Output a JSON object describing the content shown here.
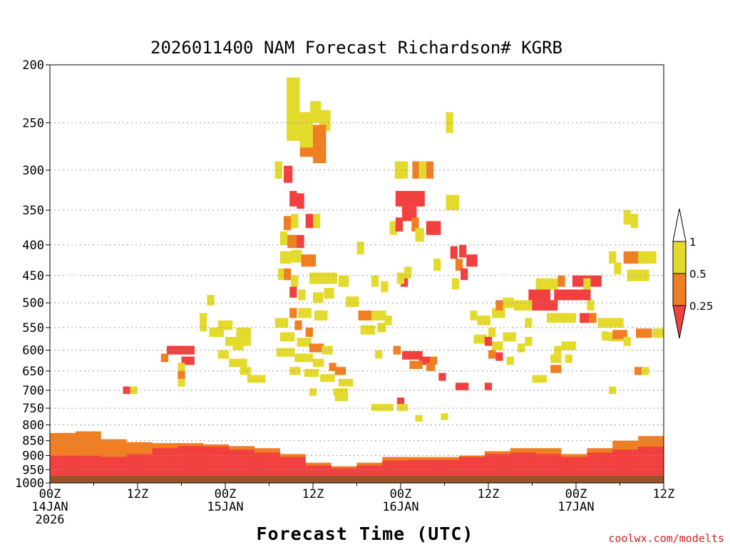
{
  "chart_data": {
    "type": "heatmap",
    "title": "2026011400 NAM Forecast Richardson# KGRB",
    "xlabel": "Forecast Time (UTC)",
    "ylabel": "",
    "source": "coolwx.com/modelts",
    "y_scale": "log-pressure (inverted)",
    "ylim": [
      1000,
      200
    ],
    "xlim_hours": [
      0,
      84
    ],
    "yticks": [
      200,
      250,
      300,
      350,
      400,
      450,
      500,
      550,
      600,
      650,
      700,
      750,
      800,
      850,
      900,
      950,
      1000
    ],
    "xticks": [
      {
        "hour": 0,
        "lines": [
          "00Z",
          "14JAN",
          "2026"
        ]
      },
      {
        "hour": 12,
        "lines": [
          "12Z"
        ]
      },
      {
        "hour": 24,
        "lines": [
          "00Z",
          "15JAN"
        ]
      },
      {
        "hour": 36,
        "lines": [
          "12Z"
        ]
      },
      {
        "hour": 48,
        "lines": [
          "00Z",
          "16JAN"
        ]
      },
      {
        "hour": 60,
        "lines": [
          "12Z"
        ]
      },
      {
        "hour": 72,
        "lines": [
          "00Z",
          "17JAN"
        ]
      },
      {
        "hour": 84,
        "lines": [
          "12Z"
        ]
      }
    ],
    "legend": [
      {
        "label": "1",
        "range": [
          0.5,
          1
        ],
        "color": "#e3da2c"
      },
      {
        "label": "0.5",
        "range": [
          0.25,
          0.5
        ],
        "color": "#ef7f22"
      },
      {
        "label": "0.25",
        "range": [
          0,
          0.25
        ],
        "color": "#f23f3f"
      }
    ],
    "colors": {
      "yellow": "#e3da2c",
      "orange": "#ef7f22",
      "red": "#f23f3f",
      "ground": "#99522a",
      "grid": "#999999"
    },
    "ground_top_hp": 972,
    "surface_layer": {
      "top_hp": [
        825,
        820,
        845,
        855,
        858,
        858,
        862,
        868,
        875,
        895,
        925,
        938,
        925,
        905,
        905,
        905,
        900,
        885,
        875,
        875,
        895,
        875,
        850,
        835,
        830
      ],
      "red_top_hp": [
        900,
        900,
        905,
        895,
        875,
        868,
        870,
        880,
        890,
        905,
        935,
        945,
        935,
        918,
        915,
        915,
        905,
        895,
        890,
        895,
        905,
        890,
        880,
        870,
        865
      ],
      "hours_step": 3.5
    },
    "cells": [
      {
        "h": 32.4,
        "p": 220,
        "dh": 1.8,
        "c": "y"
      },
      {
        "h": 32.4,
        "p": 240,
        "dh": 1.8,
        "c": "y"
      },
      {
        "h": 32.4,
        "p": 258,
        "dh": 1.8,
        "c": "y"
      },
      {
        "h": 34.2,
        "p": 250,
        "dh": 1.8,
        "c": "y"
      },
      {
        "h": 35.6,
        "p": 240,
        "dh": 1.5,
        "c": "y"
      },
      {
        "h": 36.9,
        "p": 248,
        "dh": 1.5,
        "c": "y"
      },
      {
        "h": 34.2,
        "p": 275,
        "dh": 1.8,
        "c": "o"
      },
      {
        "h": 36.0,
        "p": 262,
        "dh": 1.8,
        "c": "o"
      },
      {
        "h": 36.0,
        "p": 282,
        "dh": 1.8,
        "c": "o"
      },
      {
        "h": 34.2,
        "p": 265,
        "dh": 1.8,
        "c": "y"
      },
      {
        "h": 32.0,
        "p": 305,
        "dh": 1.2,
        "c": "r"
      },
      {
        "h": 30.8,
        "p": 300,
        "dh": 1.0,
        "c": "y"
      },
      {
        "h": 32.8,
        "p": 335,
        "dh": 1.0,
        "c": "r"
      },
      {
        "h": 33.8,
        "p": 338,
        "dh": 1.0,
        "c": "r"
      },
      {
        "h": 35.0,
        "p": 365,
        "dh": 1.0,
        "c": "r"
      },
      {
        "h": 36.0,
        "p": 365,
        "dh": 1.0,
        "c": "y"
      },
      {
        "h": 32.0,
        "p": 368,
        "dh": 1.0,
        "c": "o"
      },
      {
        "h": 33.0,
        "p": 365,
        "dh": 1.0,
        "c": "y"
      },
      {
        "h": 31.5,
        "p": 390,
        "dh": 1.0,
        "c": "y"
      },
      {
        "h": 32.5,
        "p": 395,
        "dh": 1.4,
        "c": "o"
      },
      {
        "h": 33.8,
        "p": 395,
        "dh": 1.0,
        "c": "r"
      },
      {
        "h": 31.5,
        "p": 420,
        "dh": 1.5,
        "c": "y"
      },
      {
        "h": 33.0,
        "p": 418,
        "dh": 1.5,
        "c": "y"
      },
      {
        "h": 34.4,
        "p": 425,
        "dh": 2.0,
        "c": "o"
      },
      {
        "h": 32.0,
        "p": 448,
        "dh": 1.0,
        "c": "o"
      },
      {
        "h": 31.2,
        "p": 448,
        "dh": 0.8,
        "c": "y"
      },
      {
        "h": 33.0,
        "p": 460,
        "dh": 1.0,
        "c": "y"
      },
      {
        "h": 35.5,
        "p": 455,
        "dh": 3.8,
        "c": "y"
      },
      {
        "h": 39.5,
        "p": 460,
        "dh": 1.4,
        "c": "y"
      },
      {
        "h": 32.8,
        "p": 480,
        "dh": 1.0,
        "c": "r"
      },
      {
        "h": 34.0,
        "p": 485,
        "dh": 1.0,
        "c": "y"
      },
      {
        "h": 36.0,
        "p": 490,
        "dh": 1.4,
        "c": "y"
      },
      {
        "h": 37.5,
        "p": 482,
        "dh": 1.4,
        "c": "y"
      },
      {
        "h": 40.5,
        "p": 498,
        "dh": 1.8,
        "c": "y"
      },
      {
        "h": 32.8,
        "p": 520,
        "dh": 1.0,
        "c": "o"
      },
      {
        "h": 34.0,
        "p": 520,
        "dh": 1.8,
        "c": "y"
      },
      {
        "h": 36.2,
        "p": 525,
        "dh": 1.8,
        "c": "y"
      },
      {
        "h": 30.8,
        "p": 540,
        "dh": 1.8,
        "c": "y"
      },
      {
        "h": 33.5,
        "p": 545,
        "dh": 1.0,
        "c": "o"
      },
      {
        "h": 35.0,
        "p": 560,
        "dh": 1.0,
        "c": "o"
      },
      {
        "h": 31.5,
        "p": 570,
        "dh": 2.0,
        "c": "y"
      },
      {
        "h": 33.8,
        "p": 582,
        "dh": 2.0,
        "c": "y"
      },
      {
        "h": 35.5,
        "p": 595,
        "dh": 2.0,
        "c": "o"
      },
      {
        "h": 37.2,
        "p": 600,
        "dh": 1.5,
        "c": "y"
      },
      {
        "h": 31.0,
        "p": 605,
        "dh": 2.5,
        "c": "y"
      },
      {
        "h": 33.5,
        "p": 618,
        "dh": 2.5,
        "c": "y"
      },
      {
        "h": 36.0,
        "p": 630,
        "dh": 1.5,
        "c": "y"
      },
      {
        "h": 38.2,
        "p": 640,
        "dh": 1.0,
        "c": "o"
      },
      {
        "h": 39.0,
        "p": 650,
        "dh": 1.5,
        "c": "o"
      },
      {
        "h": 32.8,
        "p": 650,
        "dh": 1.5,
        "c": "y"
      },
      {
        "h": 34.8,
        "p": 655,
        "dh": 2.0,
        "c": "y"
      },
      {
        "h": 37.0,
        "p": 668,
        "dh": 2.0,
        "c": "y"
      },
      {
        "h": 39.5,
        "p": 680,
        "dh": 2.0,
        "c": "y"
      },
      {
        "h": 38.8,
        "p": 705,
        "dh": 2.0,
        "c": "y"
      },
      {
        "h": 39.0,
        "p": 720,
        "dh": 1.8,
        "c": "y"
      },
      {
        "h": 35.5,
        "p": 705,
        "dh": 1.0,
        "c": "y"
      },
      {
        "h": 42.0,
        "p": 405,
        "dh": 1.0,
        "c": "y"
      },
      {
        "h": 44.0,
        "p": 460,
        "dh": 1.0,
        "c": "y"
      },
      {
        "h": 45.3,
        "p": 470,
        "dh": 1.0,
        "c": "y"
      },
      {
        "h": 42.2,
        "p": 525,
        "dh": 2.0,
        "c": "o"
      },
      {
        "h": 44.0,
        "p": 525,
        "dh": 2.0,
        "c": "y"
      },
      {
        "h": 45.8,
        "p": 535,
        "dh": 1.0,
        "c": "y"
      },
      {
        "h": 42.5,
        "p": 555,
        "dh": 2.0,
        "c": "y"
      },
      {
        "h": 44.8,
        "p": 550,
        "dh": 1.2,
        "c": "y"
      },
      {
        "h": 44.5,
        "p": 610,
        "dh": 1.0,
        "c": "y"
      },
      {
        "h": 44.0,
        "p": 748,
        "dh": 3.0,
        "c": "y"
      },
      {
        "h": 47.5,
        "p": 730,
        "dh": 1.0,
        "c": "r"
      },
      {
        "h": 47.5,
        "p": 748,
        "dh": 1.5,
        "c": "y"
      },
      {
        "h": 47.2,
        "p": 300,
        "dh": 1.8,
        "c": "y"
      },
      {
        "h": 49.6,
        "p": 300,
        "dh": 1.0,
        "c": "o"
      },
      {
        "h": 50.5,
        "p": 300,
        "dh": 1.0,
        "c": "y"
      },
      {
        "h": 51.5,
        "p": 300,
        "dh": 1.0,
        "c": "o"
      },
      {
        "h": 46.5,
        "p": 375,
        "dh": 1.0,
        "c": "y"
      },
      {
        "h": 47.3,
        "p": 335,
        "dh": 4.0,
        "c": "r"
      },
      {
        "h": 48.2,
        "p": 355,
        "dh": 2.0,
        "c": "r"
      },
      {
        "h": 47.3,
        "p": 370,
        "dh": 1.0,
        "c": "r"
      },
      {
        "h": 49.5,
        "p": 370,
        "dh": 1.0,
        "c": "o"
      },
      {
        "h": 51.5,
        "p": 375,
        "dh": 2.0,
        "c": "r"
      },
      {
        "h": 50.0,
        "p": 385,
        "dh": 1.2,
        "c": "y"
      },
      {
        "h": 54.2,
        "p": 340,
        "dh": 1.8,
        "c": "y"
      },
      {
        "h": 52.5,
        "p": 432,
        "dh": 1.0,
        "c": "y"
      },
      {
        "h": 54.8,
        "p": 412,
        "dh": 1.0,
        "c": "r"
      },
      {
        "h": 56.0,
        "p": 410,
        "dh": 1.0,
        "c": "r"
      },
      {
        "h": 55.5,
        "p": 432,
        "dh": 1.0,
        "c": "o"
      },
      {
        "h": 57.0,
        "p": 425,
        "dh": 1.5,
        "c": "r"
      },
      {
        "h": 56.2,
        "p": 448,
        "dh": 1.0,
        "c": "r"
      },
      {
        "h": 55.0,
        "p": 465,
        "dh": 1.0,
        "c": "y"
      },
      {
        "h": 48.0,
        "p": 460,
        "dh": 1.0,
        "c": "r"
      },
      {
        "h": 47.5,
        "p": 455,
        "dh": 1.0,
        "c": "y"
      },
      {
        "h": 48.5,
        "p": 445,
        "dh": 1.0,
        "c": "y"
      },
      {
        "h": 54.2,
        "p": 250,
        "dh": 1.0,
        "c": "y"
      },
      {
        "h": 48.2,
        "p": 612,
        "dh": 2.8,
        "c": "r"
      },
      {
        "h": 50.5,
        "p": 625,
        "dh": 1.5,
        "c": "r"
      },
      {
        "h": 49.2,
        "p": 635,
        "dh": 1.8,
        "c": "o"
      },
      {
        "h": 51.5,
        "p": 640,
        "dh": 1.2,
        "c": "o"
      },
      {
        "h": 52.0,
        "p": 625,
        "dh": 1.0,
        "c": "o"
      },
      {
        "h": 47.0,
        "p": 600,
        "dh": 1.0,
        "c": "o"
      },
      {
        "h": 53.2,
        "p": 665,
        "dh": 1.0,
        "c": "r"
      },
      {
        "h": 55.5,
        "p": 690,
        "dh": 1.8,
        "c": "r"
      },
      {
        "h": 59.5,
        "p": 690,
        "dh": 1.0,
        "c": "r"
      },
      {
        "h": 50.0,
        "p": 780,
        "dh": 1.0,
        "c": "y"
      },
      {
        "h": 53.5,
        "p": 775,
        "dh": 1.0,
        "c": "y"
      },
      {
        "h": 57.5,
        "p": 525,
        "dh": 1.0,
        "c": "y"
      },
      {
        "h": 58.5,
        "p": 535,
        "dh": 1.8,
        "c": "y"
      },
      {
        "h": 60.5,
        "p": 520,
        "dh": 1.8,
        "c": "y"
      },
      {
        "h": 62.0,
        "p": 500,
        "dh": 1.5,
        "c": "y"
      },
      {
        "h": 61.0,
        "p": 505,
        "dh": 1.0,
        "c": "o"
      },
      {
        "h": 58.0,
        "p": 575,
        "dh": 1.8,
        "c": "y"
      },
      {
        "h": 59.5,
        "p": 580,
        "dh": 1.0,
        "c": "r"
      },
      {
        "h": 60.0,
        "p": 560,
        "dh": 1.0,
        "c": "y"
      },
      {
        "h": 60.5,
        "p": 590,
        "dh": 1.5,
        "c": "y"
      },
      {
        "h": 62.0,
        "p": 570,
        "dh": 1.8,
        "c": "y"
      },
      {
        "h": 60.0,
        "p": 610,
        "dh": 1.0,
        "c": "o"
      },
      {
        "h": 61.0,
        "p": 615,
        "dh": 1.0,
        "c": "r"
      },
      {
        "h": 62.5,
        "p": 625,
        "dh": 1.0,
        "c": "y"
      },
      {
        "h": 64.0,
        "p": 595,
        "dh": 1.0,
        "c": "y"
      },
      {
        "h": 65.0,
        "p": 540,
        "dh": 1.0,
        "c": "y"
      },
      {
        "h": 63.5,
        "p": 505,
        "dh": 2.5,
        "c": "y"
      },
      {
        "h": 66.0,
        "p": 505,
        "dh": 3.5,
        "c": "r"
      },
      {
        "h": 69.0,
        "p": 485,
        "dh": 5.0,
        "c": "r"
      },
      {
        "h": 71.5,
        "p": 460,
        "dh": 4.0,
        "c": "r"
      },
      {
        "h": 69.5,
        "p": 460,
        "dh": 1.0,
        "c": "o"
      },
      {
        "h": 65.5,
        "p": 485,
        "dh": 3.0,
        "c": "r"
      },
      {
        "h": 66.5,
        "p": 465,
        "dh": 3.0,
        "c": "y"
      },
      {
        "h": 68.0,
        "p": 530,
        "dh": 4.0,
        "c": "y"
      },
      {
        "h": 72.5,
        "p": 530,
        "dh": 2.0,
        "c": "r"
      },
      {
        "h": 73.8,
        "p": 530,
        "dh": 1.0,
        "c": "o"
      },
      {
        "h": 75.0,
        "p": 540,
        "dh": 3.5,
        "c": "y"
      },
      {
        "h": 76.5,
        "p": 570,
        "dh": 2.0,
        "c": "y"
      },
      {
        "h": 77.0,
        "p": 565,
        "dh": 2.0,
        "c": "o"
      },
      {
        "h": 75.5,
        "p": 568,
        "dh": 1.0,
        "c": "y"
      },
      {
        "h": 73.0,
        "p": 465,
        "dh": 1.0,
        "c": "y"
      },
      {
        "h": 73.5,
        "p": 505,
        "dh": 1.0,
        "c": "y"
      },
      {
        "h": 68.5,
        "p": 620,
        "dh": 1.5,
        "c": "y"
      },
      {
        "h": 68.5,
        "p": 645,
        "dh": 1.5,
        "c": "o"
      },
      {
        "h": 69.0,
        "p": 600,
        "dh": 1.0,
        "c": "y"
      },
      {
        "h": 70.0,
        "p": 590,
        "dh": 2.0,
        "c": "y"
      },
      {
        "h": 70.5,
        "p": 620,
        "dh": 1.0,
        "c": "y"
      },
      {
        "h": 66.0,
        "p": 670,
        "dh": 2.0,
        "c": "y"
      },
      {
        "h": 65.0,
        "p": 580,
        "dh": 1.0,
        "c": "y"
      },
      {
        "h": 76.5,
        "p": 700,
        "dh": 1.0,
        "c": "y"
      },
      {
        "h": 76.5,
        "p": 420,
        "dh": 1.0,
        "c": "y"
      },
      {
        "h": 78.5,
        "p": 420,
        "dh": 3.0,
        "c": "o"
      },
      {
        "h": 80.5,
        "p": 420,
        "dh": 2.5,
        "c": "y"
      },
      {
        "h": 79.0,
        "p": 450,
        "dh": 1.0,
        "c": "y"
      },
      {
        "h": 80.0,
        "p": 450,
        "dh": 2.0,
        "c": "y"
      },
      {
        "h": 77.2,
        "p": 438,
        "dh": 1.0,
        "c": "y"
      },
      {
        "h": 78.5,
        "p": 360,
        "dh": 1.0,
        "c": "y"
      },
      {
        "h": 79.5,
        "p": 365,
        "dh": 1.0,
        "c": "y"
      },
      {
        "h": 80.0,
        "p": 650,
        "dh": 1.0,
        "c": "o"
      },
      {
        "h": 81.0,
        "p": 650,
        "dh": 1.0,
        "c": "y"
      },
      {
        "h": 78.5,
        "p": 580,
        "dh": 1.0,
        "c": "y"
      },
      {
        "h": 80.2,
        "p": 562,
        "dh": 2.2,
        "c": "o"
      },
      {
        "h": 82.5,
        "p": 562,
        "dh": 1.5,
        "c": "y"
      },
      {
        "h": 16.0,
        "p": 600,
        "dh": 3.8,
        "c": "r"
      },
      {
        "h": 18.0,
        "p": 625,
        "dh": 1.8,
        "c": "r"
      },
      {
        "h": 15.2,
        "p": 618,
        "dh": 1.0,
        "c": "o"
      },
      {
        "h": 17.5,
        "p": 640,
        "dh": 1.0,
        "c": "y"
      },
      {
        "h": 17.5,
        "p": 660,
        "dh": 1.0,
        "c": "o"
      },
      {
        "h": 17.5,
        "p": 680,
        "dh": 1.0,
        "c": "y"
      },
      {
        "h": 10.0,
        "p": 700,
        "dh": 1.0,
        "c": "r"
      },
      {
        "h": 11.0,
        "p": 700,
        "dh": 1.0,
        "c": "y"
      },
      {
        "h": 20.5,
        "p": 548,
        "dh": 1.0,
        "c": "y"
      },
      {
        "h": 20.5,
        "p": 530,
        "dh": 1.0,
        "c": "y"
      },
      {
        "h": 21.5,
        "p": 495,
        "dh": 1.0,
        "c": "y"
      },
      {
        "h": 21.8,
        "p": 560,
        "dh": 2.0,
        "c": "y"
      },
      {
        "h": 23.0,
        "p": 545,
        "dh": 2.0,
        "c": "y"
      },
      {
        "h": 24.0,
        "p": 580,
        "dh": 3.5,
        "c": "y"
      },
      {
        "h": 25.5,
        "p": 560,
        "dh": 2.0,
        "c": "y"
      },
      {
        "h": 23.0,
        "p": 610,
        "dh": 1.5,
        "c": "y"
      },
      {
        "h": 24.5,
        "p": 630,
        "dh": 2.5,
        "c": "y"
      },
      {
        "h": 26.0,
        "p": 650,
        "dh": 1.5,
        "c": "y"
      },
      {
        "h": 27.0,
        "p": 670,
        "dh": 2.5,
        "c": "y"
      },
      {
        "h": 25.0,
        "p": 590,
        "dh": 1.5,
        "c": "y"
      }
    ]
  }
}
